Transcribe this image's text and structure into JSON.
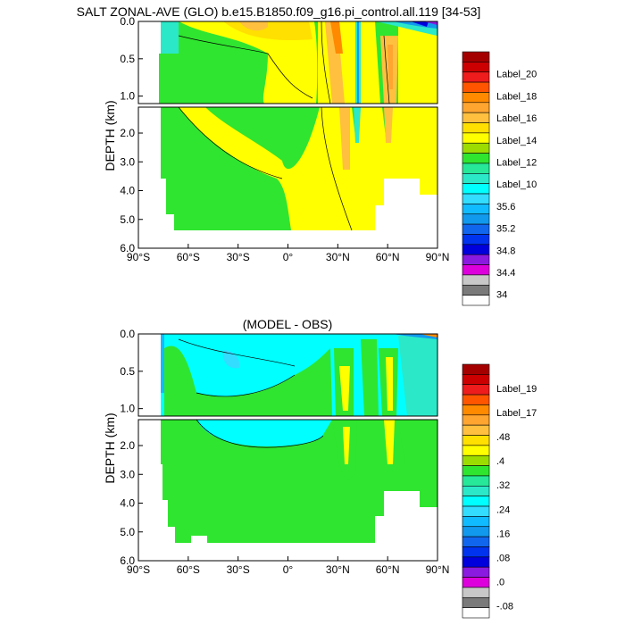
{
  "chart_data": [
    {
      "type": "heatmap",
      "title": "SALT ZONAL-AVE (GLO) b.e15.B1850.f09_g16.pi_control.all.119 [34-53]",
      "ylabel": "DEPTH (km)",
      "xlabel": "",
      "x_ticks": [
        "90°S",
        "60°S",
        "30°S",
        "0°",
        "30°N",
        "60°N",
        "90°N"
      ],
      "upper_y_ticks": [
        "0.0",
        "0.5",
        "1.0"
      ],
      "lower_y_ticks": [
        "2.0",
        "3.0",
        "4.0",
        "5.0",
        "6.0"
      ],
      "xlim": [
        -90,
        90
      ],
      "ylim_upper": [
        0,
        1.1
      ],
      "ylim_lower": [
        1.1,
        6
      ],
      "colorbar_labels": [
        "Label_20",
        "Label_18",
        "Label_16",
        "Label_14",
        "Label_12",
        "Label_10",
        "35.6",
        "35.2",
        "34.8",
        "34.4",
        "34"
      ],
      "colorbar_colors": [
        "#a50000",
        "#cc0000",
        "#ee1c1c",
        "#ff5500",
        "#ff8a00",
        "#ffa530",
        "#ffc03f",
        "#ffe000",
        "#ffff00",
        "#9cdc00",
        "#2fe52f",
        "#26e898",
        "#2be8c8",
        "#00ffff",
        "#33ddff",
        "#11bbff",
        "#1199ee",
        "#1166ee",
        "#0033ee",
        "#0000dd",
        "#8a1adf",
        "#dd00dd",
        "#c8c8c8",
        "#7a7a7a",
        "#ffffff"
      ]
    },
    {
      "type": "heatmap",
      "title": "(MODEL - OBS)",
      "ylabel": "DEPTH (km)",
      "xlabel": "",
      "x_ticks": [
        "90°S",
        "60°S",
        "30°S",
        "0°",
        "30°N",
        "60°N",
        "90°N"
      ],
      "upper_y_ticks": [
        "0.0",
        "0.5",
        "1.0"
      ],
      "lower_y_ticks": [
        "2.0",
        "3.0",
        "4.0",
        "5.0",
        "6.0"
      ],
      "xlim": [
        -90,
        90
      ],
      "ylim_upper": [
        0,
        1.1
      ],
      "ylim_lower": [
        1.1,
        6
      ],
      "colorbar_labels": [
        "Label_19",
        "Label_17",
        ".48",
        ".4",
        ".32",
        ".24",
        ".16",
        ".08",
        ".0",
        "-.08"
      ],
      "colorbar_colors": [
        "#a50000",
        "#cc0000",
        "#ee1c1c",
        "#ff5500",
        "#ff8a00",
        "#ffa530",
        "#ffc03f",
        "#ffe000",
        "#ffff00",
        "#9cdc00",
        "#2fe52f",
        "#26e898",
        "#2be8c8",
        "#00ffff",
        "#33ddff",
        "#11bbff",
        "#1199ee",
        "#1166ee",
        "#0033ee",
        "#0000dd",
        "#8a1adf",
        "#dd00dd",
        "#c8c8c8",
        "#7a7a7a",
        "#ffffff"
      ]
    }
  ]
}
